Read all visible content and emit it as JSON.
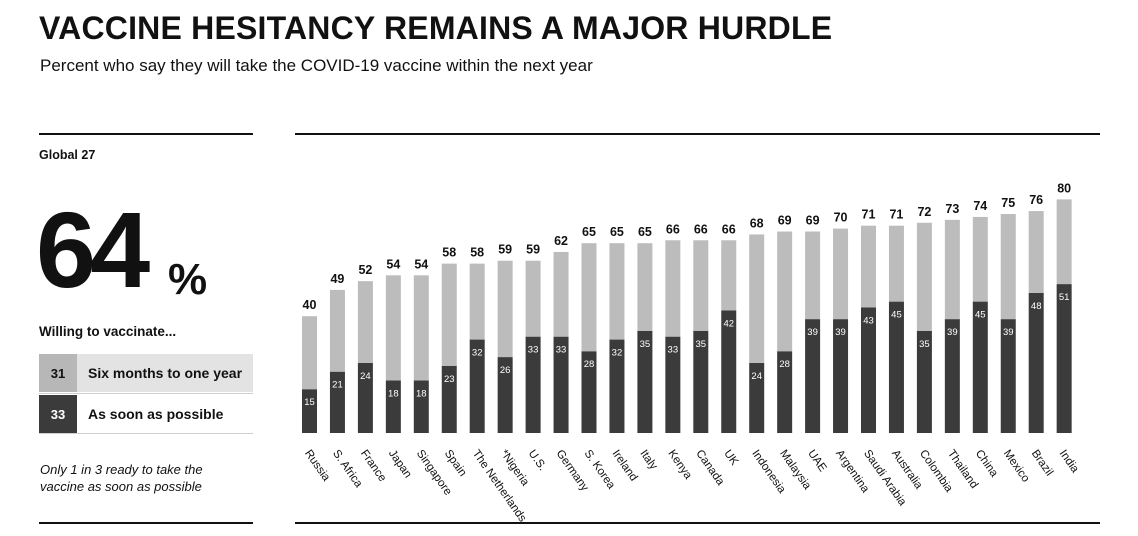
{
  "header": {
    "title": "VACCINE HESITANCY REMAINS A MAJOR HURDLE",
    "subtitle": "Percent who say they will take the COVID-19 vaccine within the next year"
  },
  "side_panel": {
    "global_label": "Global 27",
    "big_value": "64",
    "big_unit": "%",
    "willing_label": "Willing to vaccinate...",
    "legend": [
      {
        "value": "31",
        "label": "Six months to one year",
        "color": "#b7b7b7"
      },
      {
        "value": "33",
        "label": "As soon as possible",
        "color": "#3b3b3b"
      }
    ],
    "note": "Only 1 in 3 ready to take the vaccine as soon as possible"
  },
  "chart_data": {
    "type": "bar",
    "stacked": true,
    "categories": [
      "Russia",
      "S. Africa",
      "France",
      "Japan",
      "Singapore",
      "Spain",
      "The Netherlands",
      "*Nigeria",
      "U.S.",
      "Germany",
      "S. Korea",
      "Ireland",
      "Italy",
      "Kenya",
      "Canada",
      "UK",
      "Indonesia",
      "Malaysia",
      "UAE",
      "Argentina",
      "Saudi Arabia",
      "Australia",
      "Colombia",
      "Thailand",
      "China",
      "Mexico",
      "Brazil",
      "India"
    ],
    "totals": [
      40,
      49,
      52,
      54,
      54,
      58,
      58,
      59,
      59,
      62,
      65,
      65,
      65,
      66,
      66,
      66,
      68,
      69,
      69,
      70,
      71,
      71,
      72,
      73,
      74,
      75,
      76,
      80
    ],
    "series": [
      {
        "name": "As soon as possible",
        "color": "#3b3b3b",
        "values": [
          15,
          21,
          24,
          18,
          18,
          23,
          32,
          26,
          33,
          33,
          28,
          32,
          35,
          33,
          35,
          42,
          24,
          28,
          39,
          39,
          43,
          45,
          35,
          39,
          45,
          39,
          48,
          51
        ]
      },
      {
        "name": "Six months to one year",
        "color": "#bcbcbc",
        "values": [
          25,
          28,
          28,
          36,
          36,
          35,
          26,
          33,
          26,
          29,
          37,
          33,
          30,
          33,
          31,
          24,
          44,
          41,
          30,
          31,
          28,
          26,
          37,
          34,
          29,
          36,
          28,
          29
        ]
      }
    ],
    "ylim": [
      0,
      80
    ],
    "grid": false,
    "legend": "left"
  }
}
